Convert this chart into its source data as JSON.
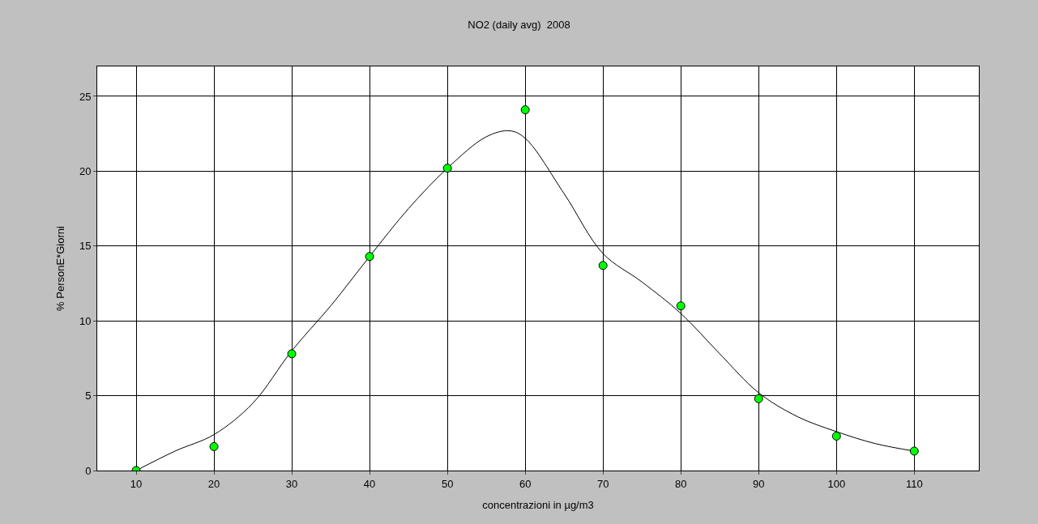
{
  "chart_data": {
    "type": "scatter",
    "title": "NO2 (daily avg)  2008",
    "xlabel": "concentrazioni in µg/m3",
    "ylabel": "% PersonE*Giorni",
    "xlim": [
      5,
      118.3
    ],
    "ylim": [
      0,
      27
    ],
    "xticks": [
      10,
      20,
      30,
      40,
      50,
      60,
      70,
      80,
      90,
      100,
      110
    ],
    "yticks": [
      0,
      5,
      10,
      15,
      20,
      25
    ],
    "grid": true,
    "series": [
      {
        "type": "line",
        "color": "#000000",
        "marker": "none",
        "line_style": "solid",
        "x": [
          10,
          15,
          20,
          25,
          30,
          35,
          40,
          45,
          50,
          55,
          58,
          60,
          65,
          70,
          75,
          80,
          85,
          90,
          95,
          100,
          105,
          110
        ],
        "values": [
          0,
          1.3,
          2.4,
          4.5,
          8.0,
          11.0,
          14.3,
          17.5,
          20.2,
          22.3,
          22.7,
          22.2,
          18.5,
          14.5,
          12.6,
          10.5,
          7.8,
          5.2,
          3.6,
          2.6,
          1.8,
          1.3
        ]
      },
      {
        "color": "#00ff00",
        "marker": "circle",
        "x": [
          10,
          20,
          30,
          40,
          50,
          60,
          70,
          80,
          90,
          100,
          110
        ],
        "values": [
          0,
          1.6,
          7.8,
          14.3,
          20.2,
          24.1,
          13.7,
          11.0,
          4.8,
          2.3,
          1.3
        ]
      }
    ]
  }
}
